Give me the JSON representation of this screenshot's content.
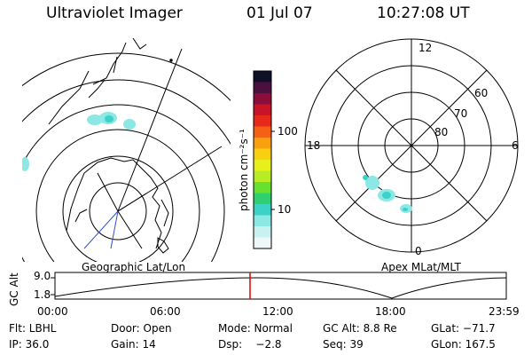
{
  "header": {
    "instrument": "Ultraviolet Imager",
    "date": "01 Jul 07",
    "time": "10:27:08 UT"
  },
  "colorbar": {
    "unit_label": "photon cm⁻²s⁻¹",
    "tick_labels": [
      "100",
      "10"
    ],
    "colors_top_to_bottom": [
      "#101028",
      "#4b1040",
      "#8c0c3a",
      "#c81428",
      "#e8281a",
      "#f46014",
      "#f8a010",
      "#f8d010",
      "#e8f01c",
      "#b8ec24",
      "#68e030",
      "#30d070",
      "#3cd2c8",
      "#8ce8e4",
      "#c8f2f0",
      "#eef8f8"
    ]
  },
  "polar_plot": {
    "clock_labels": {
      "top": "12",
      "left": "18",
      "right": "6",
      "bottom": "0"
    },
    "lat_labels": [
      "60",
      "70",
      "80"
    ],
    "title": "Apex MLat/MLT"
  },
  "geo_plot": {
    "title": "Geographic Lat/Lon"
  },
  "altitude_panel": {
    "y_axis_label": "GC Alt",
    "y_ticks": [
      "9.0",
      "1.8"
    ],
    "x_ticks": [
      "00:00",
      "06:00",
      "12:00",
      "18:00",
      "23:59"
    ],
    "marker_color": "#e00000"
  },
  "footer": {
    "row1": {
      "filter": "Flt: LBHL",
      "door": "Door: Open",
      "mode": "Mode: Normal",
      "gc_alt": "GC Alt: 8.8 Re",
      "glat": "GLat: −71.7"
    },
    "row2": {
      "ip": "IP: 36.0",
      "gain": "Gain: 14",
      "dsp": "Dsp:    −2.8",
      "seq": "Seq: 39",
      "glon": "GLon: 167.5"
    }
  }
}
